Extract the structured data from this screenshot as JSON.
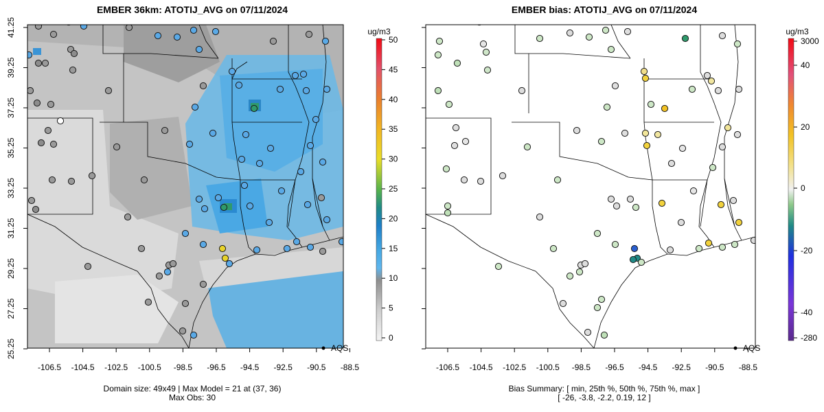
{
  "left_panel": {
    "title": "EMBER 36km: ATOTIJ_AVG on 07/11/2024",
    "caption_line1": "Domain size: 49x49 | Max Model = 21 at (37, 36)",
    "caption_line2": "Max Obs: 30",
    "colorbar_unit": "ug/m3",
    "colorbar_ticks": [
      "50",
      "45",
      "40",
      "35",
      "30",
      "25",
      "20",
      "15",
      "10",
      "5",
      "0"
    ],
    "legend_label": "AQS"
  },
  "right_panel": {
    "title": "EMBER bias: ATOTIJ_AVG on 07/11/2024",
    "caption_line1": "Bias Summary: [ min, 25th %, 50th %, 75th %, max ]",
    "caption_line2": "[ -26,   -3.8,   -2.2,   0.19,   12 ]",
    "colorbar_unit": "ug/m3",
    "colorbar_ticks": [
      "3000",
      "40",
      "20",
      "0",
      "-20",
      "-40",
      "-280"
    ],
    "legend_label": "AQS"
  },
  "axes": {
    "x_ticks": [
      "-106.5",
      "-104.5",
      "-102.5",
      "-100.5",
      "-98.5",
      "-96.5",
      "-94.5",
      "-92.5",
      "-90.5",
      "-88.5"
    ],
    "y_ticks": [
      "41.25",
      "39.25",
      "37.25",
      "35.25",
      "33.25",
      "31.25",
      "29.25",
      "27.25",
      "25.25"
    ]
  },
  "colors": {
    "model_low": "#cfcfcf",
    "model_high": "#4fb0ea",
    "obs_blue": "#5aa9e6",
    "obs_gray": "#9a9a9a",
    "bias_green": "#bfe0b8",
    "bias_yellow": "#f2d23c"
  }
}
